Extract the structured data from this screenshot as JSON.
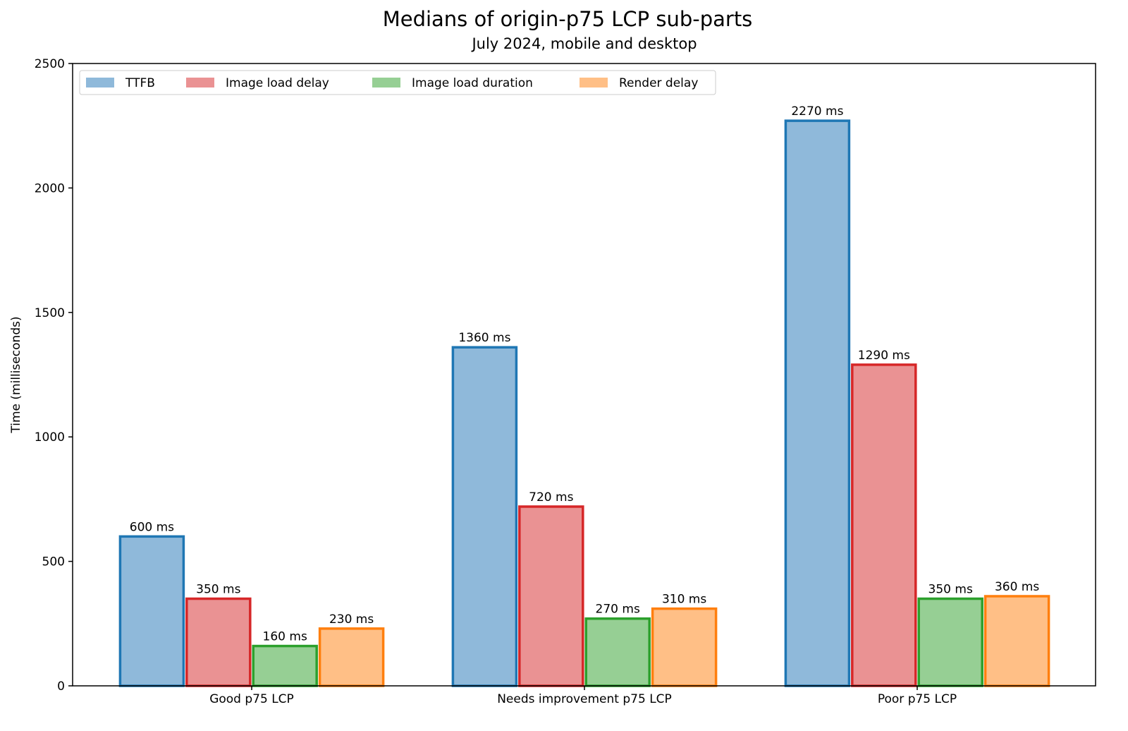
{
  "chart_data": {
    "type": "bar",
    "title": "Medians of origin-p75 LCP sub-parts",
    "subtitle": "July 2024, mobile and desktop",
    "xlabel": "",
    "ylabel": "Time (milliseconds)",
    "ylim": [
      0,
      2500
    ],
    "yticks": [
      0,
      500,
      1000,
      1500,
      2000,
      2500
    ],
    "grid": false,
    "legend_placement": "top-left",
    "categories": [
      "Good p75 LCP",
      "Needs improvement p75 LCP",
      "Poor p75 LCP"
    ],
    "value_label_suffix": " ms",
    "series": [
      {
        "name": "TTFB",
        "values": [
          600,
          1360,
          2270
        ],
        "fill": "#8fb9da",
        "edge": "#1f77b4"
      },
      {
        "name": "Image load delay",
        "values": [
          350,
          720,
          1290
        ],
        "fill": "#ea9293",
        "edge": "#d62728"
      },
      {
        "name": "Image load duration",
        "values": [
          160,
          270,
          350
        ],
        "fill": "#96cf94",
        "edge": "#2ca02c"
      },
      {
        "name": "Render delay",
        "values": [
          230,
          310,
          360
        ],
        "fill": "#ffbf86",
        "edge": "#ff7f0e"
      }
    ]
  }
}
